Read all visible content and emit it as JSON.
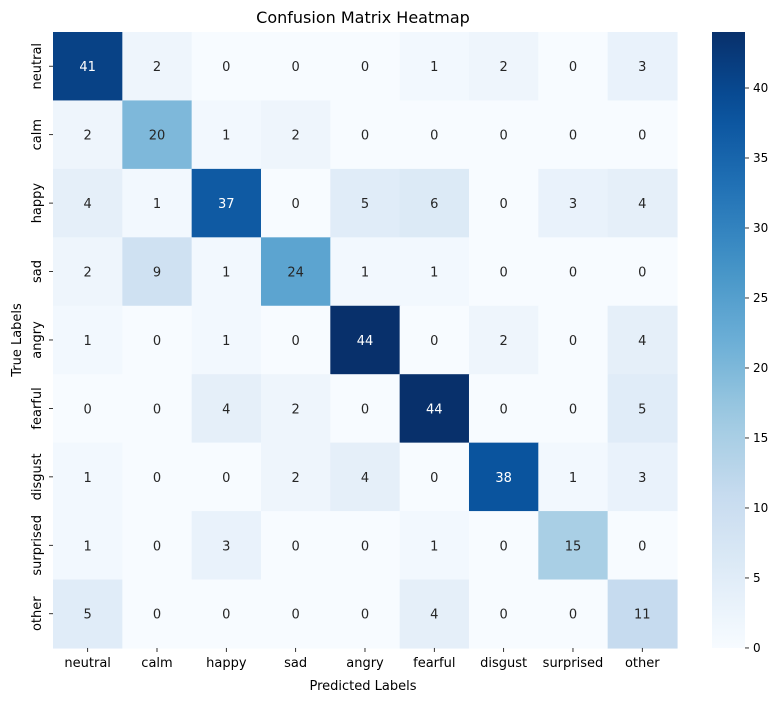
{
  "chart_data": {
    "type": "heatmap",
    "title": "Confusion Matrix Heatmap",
    "xlabel": "Predicted Labels",
    "ylabel": "True Labels",
    "x_categories": [
      "neutral",
      "calm",
      "happy",
      "sad",
      "angry",
      "fearful",
      "disgust",
      "surprised",
      "other"
    ],
    "y_categories": [
      "neutral",
      "calm",
      "happy",
      "sad",
      "angry",
      "fearful",
      "disgust",
      "surprised",
      "other"
    ],
    "values": [
      [
        41,
        2,
        0,
        0,
        0,
        1,
        2,
        0,
        3
      ],
      [
        2,
        20,
        1,
        2,
        0,
        0,
        0,
        0,
        0
      ],
      [
        4,
        1,
        37,
        0,
        5,
        6,
        0,
        3,
        4
      ],
      [
        2,
        9,
        1,
        24,
        1,
        1,
        0,
        0,
        0
      ],
      [
        1,
        0,
        1,
        0,
        44,
        0,
        2,
        0,
        4
      ],
      [
        0,
        0,
        4,
        2,
        0,
        44,
        0,
        0,
        5
      ],
      [
        1,
        0,
        0,
        2,
        4,
        0,
        38,
        1,
        3
      ],
      [
        1,
        0,
        3,
        0,
        0,
        1,
        0,
        15,
        0
      ],
      [
        5,
        0,
        0,
        0,
        0,
        4,
        0,
        0,
        11
      ]
    ],
    "colormap": "Blues",
    "value_range": [
      0,
      44
    ],
    "colorbar_ticks": [
      0,
      5,
      10,
      15,
      20,
      25,
      30,
      35,
      40
    ],
    "annotated": true,
    "colorbar": "right"
  }
}
